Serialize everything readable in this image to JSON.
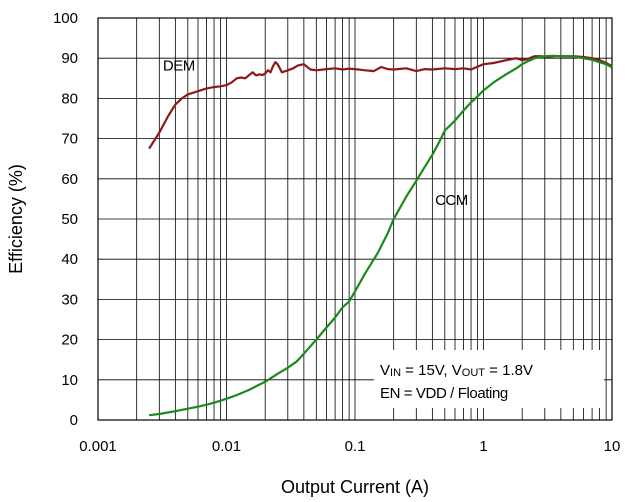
{
  "chart_data": {
    "type": "line",
    "title": "",
    "xlabel": "Output Current (A)",
    "ylabel": "Efficiency (%)",
    "xscale": "log",
    "xlim": [
      0.001,
      10
    ],
    "ylim": [
      0,
      100
    ],
    "grid": true,
    "x_tick_labels": [
      "0.001",
      "0.01",
      "0.1",
      "1",
      "10"
    ],
    "y_tick_labels": [
      "0",
      "10",
      "20",
      "30",
      "40",
      "50",
      "60",
      "70",
      "80",
      "90",
      "100"
    ],
    "series": [
      {
        "name": "DEM",
        "color": "#8b1a1a",
        "x": [
          0.0025,
          0.003,
          0.0035,
          0.004,
          0.0045,
          0.005,
          0.006,
          0.007,
          0.008,
          0.009,
          0.01,
          0.011,
          0.012,
          0.013,
          0.014,
          0.015,
          0.016,
          0.017,
          0.018,
          0.019,
          0.02,
          0.021,
          0.022,
          0.023,
          0.024,
          0.025,
          0.027,
          0.03,
          0.033,
          0.036,
          0.04,
          0.045,
          0.05,
          0.06,
          0.07,
          0.08,
          0.09,
          0.1,
          0.12,
          0.14,
          0.16,
          0.18,
          0.2,
          0.25,
          0.3,
          0.35,
          0.4,
          0.5,
          0.6,
          0.7,
          0.8,
          1.0,
          1.2,
          1.5,
          1.8,
          2.0,
          2.2,
          2.5,
          2.8,
          3.2,
          3.6,
          4.0,
          5.0,
          6.0,
          7.0,
          8.0,
          9.0,
          10.0
        ],
        "y": [
          67.5,
          71.5,
          75.5,
          78.5,
          80.0,
          81.0,
          81.8,
          82.5,
          82.8,
          83.0,
          83.3,
          84.0,
          85.0,
          85.2,
          85.0,
          85.8,
          86.5,
          85.7,
          86.0,
          85.8,
          86.2,
          87.0,
          86.5,
          88.0,
          89.0,
          88.5,
          86.5,
          87.0,
          87.5,
          88.2,
          88.5,
          87.2,
          87.0,
          87.3,
          87.5,
          87.2,
          87.4,
          87.3,
          87.0,
          86.8,
          87.8,
          87.3,
          87.2,
          87.5,
          86.8,
          87.3,
          87.2,
          87.5,
          87.3,
          87.5,
          87.2,
          88.5,
          88.8,
          89.5,
          90.0,
          89.5,
          89.8,
          90.5,
          90.5,
          90.3,
          90.5,
          90.5,
          90.5,
          90.3,
          90.0,
          89.5,
          88.8,
          88.0
        ]
      },
      {
        "name": "CCM",
        "color": "#1a8a1a",
        "x": [
          0.0025,
          0.003,
          0.004,
          0.005,
          0.006,
          0.007,
          0.008,
          0.009,
          0.01,
          0.012,
          0.015,
          0.018,
          0.02,
          0.025,
          0.03,
          0.035,
          0.04,
          0.05,
          0.06,
          0.07,
          0.08,
          0.09,
          0.1,
          0.12,
          0.15,
          0.18,
          0.2,
          0.25,
          0.3,
          0.35,
          0.4,
          0.45,
          0.5,
          0.6,
          0.7,
          0.8,
          0.9,
          1.0,
          1.2,
          1.5,
          1.8,
          2.0,
          2.2,
          2.5,
          2.8,
          3.0,
          3.5,
          4.0,
          5.0,
          6.0,
          7.0,
          8.0,
          9.0,
          10.0
        ],
        "y": [
          1.2,
          1.5,
          2.2,
          2.8,
          3.3,
          3.8,
          4.3,
          4.8,
          5.3,
          6.2,
          7.5,
          8.8,
          9.5,
          11.5,
          13.0,
          14.5,
          16.5,
          20.0,
          23.0,
          25.5,
          28.0,
          29.5,
          32.0,
          36.5,
          41.5,
          46.5,
          50.0,
          55.5,
          59.5,
          63.0,
          66.0,
          69.0,
          72.0,
          74.5,
          77.0,
          79.0,
          80.5,
          82.0,
          84.0,
          86.0,
          87.5,
          88.5,
          89.2,
          90.0,
          90.3,
          90.5,
          90.6,
          90.5,
          90.4,
          90.0,
          89.6,
          89.0,
          88.5,
          87.7
        ]
      }
    ],
    "annotations": [
      {
        "id": "dem-label",
        "text": "DEM",
        "x": 0.0032,
        "y": 87
      },
      {
        "id": "ccm-label",
        "text": "CCM",
        "x": 0.42,
        "y": 53.5
      }
    ],
    "conditions": {
      "line1": {
        "v": "V",
        "in_sub": "IN",
        "eq1": " = 15V, ",
        "vo": "V",
        "out_sub": "OUT",
        "eq2": " = 1.8V"
      },
      "line2": "EN = VDD / Floating"
    }
  }
}
